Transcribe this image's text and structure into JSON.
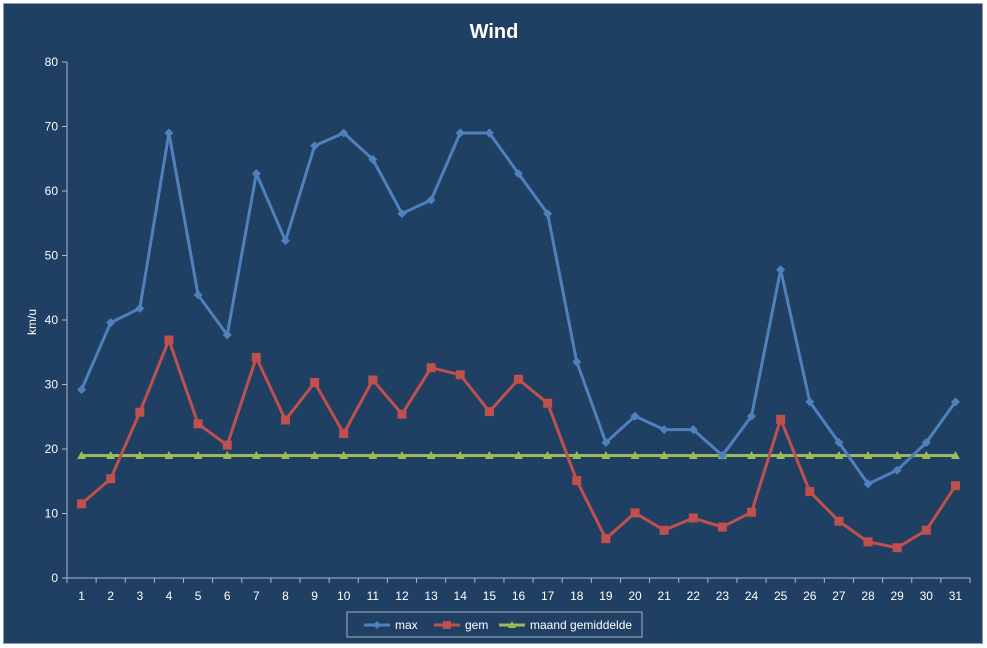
{
  "chart_data": {
    "type": "line",
    "title": "Wind",
    "xlabel": "",
    "ylabel": "km/u",
    "ylim": [
      0,
      80
    ],
    "yticks": [
      0,
      10,
      20,
      30,
      40,
      50,
      60,
      70,
      80
    ],
    "categories": [
      "1",
      "2",
      "3",
      "4",
      "5",
      "6",
      "7",
      "8",
      "9",
      "10",
      "11",
      "12",
      "13",
      "14",
      "15",
      "16",
      "17",
      "18",
      "19",
      "20",
      "21",
      "22",
      "23",
      "24",
      "25",
      "26",
      "27",
      "28",
      "29",
      "30",
      "31"
    ],
    "grid": false,
    "legend_position": "bottom",
    "series": [
      {
        "name": "max",
        "color": "#4f81bd",
        "marker": "diamond",
        "values": [
          29.2,
          39.6,
          41.8,
          69,
          43.9,
          37.7,
          62.7,
          52.3,
          67,
          69,
          64.9,
          56.5,
          58.6,
          69,
          69,
          62.7,
          56.5,
          33.5,
          21,
          25.1,
          23,
          23,
          19,
          25.1,
          47.8,
          27.3,
          21,
          14.6,
          16.7,
          21,
          27.3
        ]
      },
      {
        "name": "gem",
        "color": "#c0504d",
        "marker": "square",
        "values": [
          11.5,
          15.4,
          25.7,
          36.9,
          23.9,
          20.6,
          34.2,
          24.5,
          30.3,
          22.4,
          30.7,
          25.4,
          32.6,
          31.5,
          25.8,
          30.8,
          27.1,
          15.1,
          6.1,
          10.1,
          7.4,
          9.3,
          7.9,
          10.2,
          24.6,
          13.4,
          8.8,
          5.6,
          4.7,
          7.4,
          14.3
        ]
      },
      {
        "name": "maand gemiddelde",
        "color": "#9bbb59",
        "marker": "triangle",
        "values": [
          19,
          19,
          19,
          19,
          19,
          19,
          19,
          19,
          19,
          19,
          19,
          19,
          19,
          19,
          19,
          19,
          19,
          19,
          19,
          19,
          19,
          19,
          19,
          19,
          19,
          19,
          19,
          19,
          19,
          19,
          19
        ]
      }
    ]
  }
}
